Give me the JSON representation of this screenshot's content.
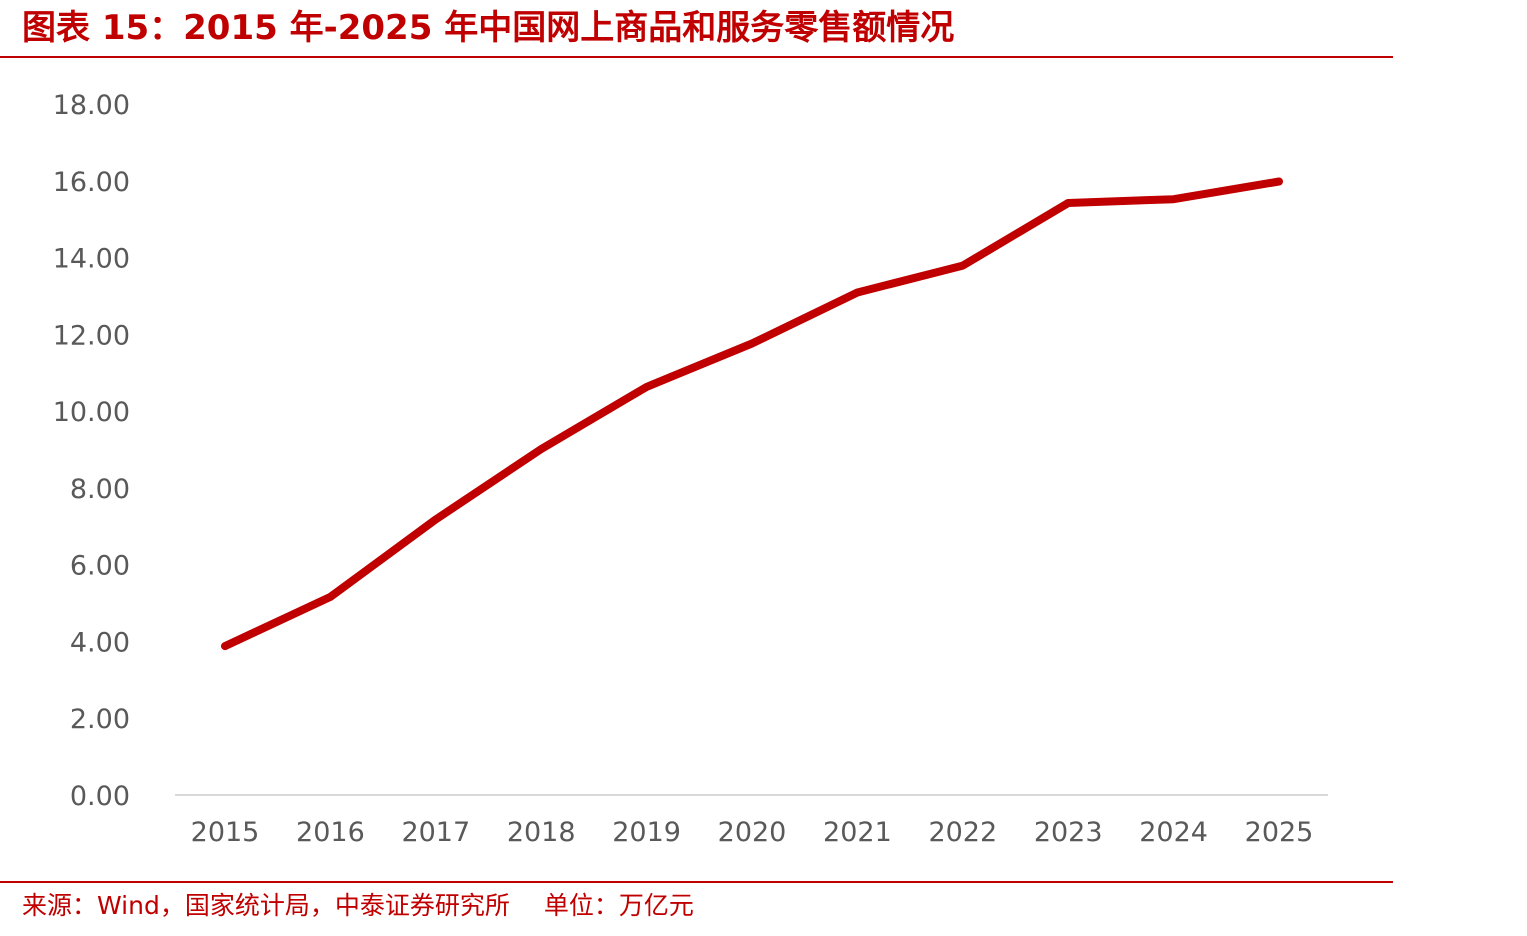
{
  "title": "图表 15：2015 年-2025 年中国网上商品和服务零售额情况",
  "source": {
    "text": "来源：Wind，国家统计局，中泰证券研究所",
    "unit": "单位：万亿元"
  },
  "colors": {
    "accent": "#c00000",
    "line": "#c00000",
    "axis": "#d9d9d9",
    "tick_text": "#595959"
  },
  "chart_data": {
    "type": "line",
    "title": "",
    "xlabel": "",
    "ylabel": "",
    "categories": [
      "2015",
      "2016",
      "2017",
      "2018",
      "2019",
      "2020",
      "2021",
      "2022",
      "2023",
      "2024",
      "2025"
    ],
    "series": [
      {
        "values": [
          3.88,
          5.16,
          7.18,
          9.01,
          10.63,
          11.76,
          13.09,
          13.79,
          15.42,
          15.52,
          15.98
        ]
      }
    ],
    "ylim": [
      0,
      18
    ],
    "yticks": [
      "0.00",
      "2.00",
      "4.00",
      "6.00",
      "8.00",
      "10.00",
      "12.00",
      "14.00",
      "16.00",
      "18.00"
    ],
    "grid": false,
    "legend": "none"
  }
}
